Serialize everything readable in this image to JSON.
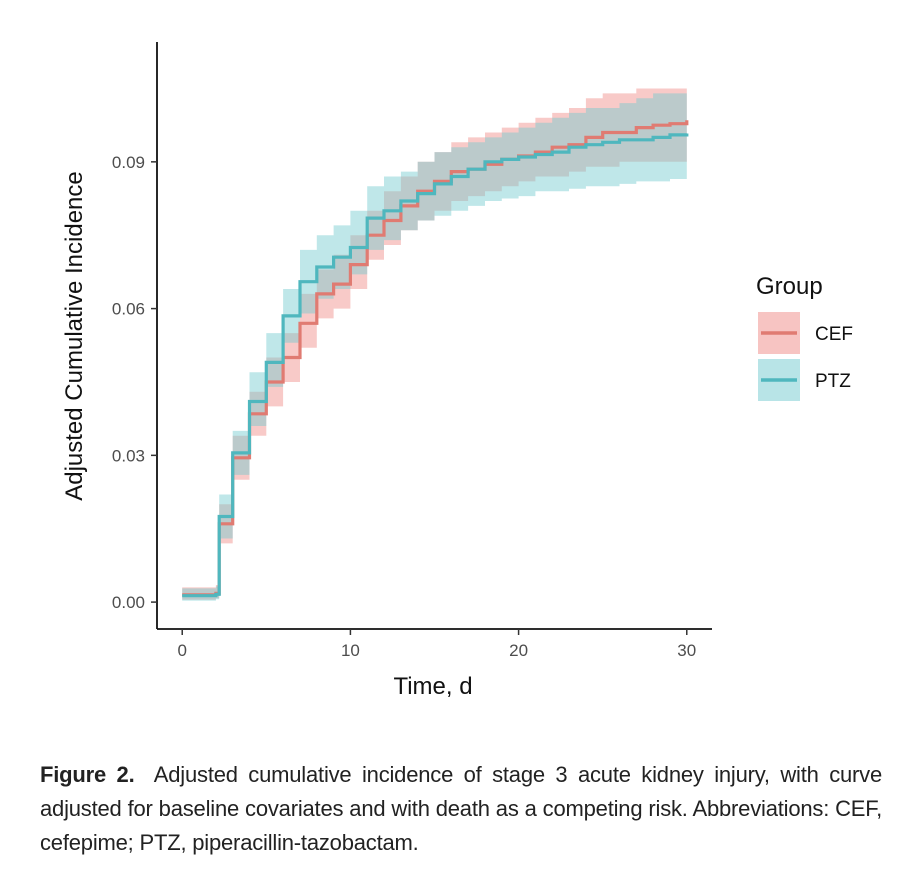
{
  "chart_data": {
    "type": "line",
    "title": "",
    "xlabel": "Time, d",
    "ylabel": "Adjusted Cumulative Incidence",
    "xlim": [
      -1.5,
      31.5
    ],
    "ylim": [
      -0.0055,
      0.1145
    ],
    "xticks": [
      0,
      10,
      20,
      30
    ],
    "xtick_labels": [
      "0",
      "10",
      "20",
      "30"
    ],
    "yticks": [
      0.0,
      0.03,
      0.06,
      0.09
    ],
    "ytick_labels": [
      "0.00",
      "0.03",
      "0.06",
      "0.09"
    ],
    "legend": {
      "title": "Group",
      "placement": "right"
    },
    "series": [
      {
        "name": "CEF",
        "color": "#e07b72",
        "band_color": "#f08a85",
        "x": [
          0,
          2,
          2.2,
          3,
          4,
          5,
          6,
          7,
          8,
          9,
          10,
          11,
          12,
          13,
          14,
          15,
          16,
          17,
          18,
          19,
          20,
          21,
          22,
          23,
          24,
          25,
          26,
          27,
          28,
          29,
          30
        ],
        "y": [
          0.0015,
          0.0018,
          0.016,
          0.0295,
          0.0385,
          0.045,
          0.05,
          0.057,
          0.063,
          0.065,
          0.069,
          0.075,
          0.078,
          0.081,
          0.084,
          0.086,
          0.088,
          0.0885,
          0.0895,
          0.0905,
          0.0912,
          0.092,
          0.093,
          0.0935,
          0.095,
          0.096,
          0.096,
          0.097,
          0.0975,
          0.0978,
          0.0985
        ],
        "lower": [
          0.0005,
          0.0008,
          0.012,
          0.025,
          0.034,
          0.04,
          0.045,
          0.052,
          0.058,
          0.06,
          0.064,
          0.07,
          0.073,
          0.076,
          0.078,
          0.08,
          0.082,
          0.083,
          0.084,
          0.085,
          0.086,
          0.087,
          0.087,
          0.088,
          0.089,
          0.089,
          0.09,
          0.09,
          0.09,
          0.09,
          0.091
        ],
        "upper": [
          0.003,
          0.0035,
          0.02,
          0.034,
          0.043,
          0.05,
          0.055,
          0.063,
          0.068,
          0.071,
          0.075,
          0.08,
          0.084,
          0.087,
          0.09,
          0.092,
          0.094,
          0.095,
          0.096,
          0.097,
          0.098,
          0.099,
          0.1,
          0.101,
          0.103,
          0.104,
          0.104,
          0.105,
          0.105,
          0.105,
          0.106
        ]
      },
      {
        "name": "PTZ",
        "color": "#4fb7be",
        "band_color": "#72c9cf",
        "x": [
          0,
          2,
          2.2,
          3,
          4,
          5,
          6,
          7,
          8,
          9,
          10,
          11,
          12,
          13,
          14,
          15,
          16,
          17,
          18,
          19,
          20,
          21,
          22,
          23,
          24,
          25,
          26,
          27,
          28,
          29,
          30
        ],
        "y": [
          0.0013,
          0.0016,
          0.0175,
          0.0305,
          0.041,
          0.049,
          0.0585,
          0.0655,
          0.0685,
          0.0705,
          0.0725,
          0.0785,
          0.08,
          0.082,
          0.0835,
          0.0855,
          0.087,
          0.0885,
          0.09,
          0.0905,
          0.091,
          0.0915,
          0.092,
          0.093,
          0.0935,
          0.094,
          0.0945,
          0.0945,
          0.095,
          0.0955,
          0.0958
        ],
        "lower": [
          0.0003,
          0.0006,
          0.013,
          0.026,
          0.036,
          0.044,
          0.053,
          0.059,
          0.062,
          0.064,
          0.067,
          0.072,
          0.074,
          0.076,
          0.078,
          0.079,
          0.08,
          0.081,
          0.082,
          0.0825,
          0.083,
          0.084,
          0.084,
          0.0845,
          0.085,
          0.085,
          0.0855,
          0.086,
          0.086,
          0.0865,
          0.087
        ],
        "upper": [
          0.0028,
          0.0032,
          0.022,
          0.035,
          0.047,
          0.055,
          0.064,
          0.072,
          0.075,
          0.077,
          0.08,
          0.085,
          0.087,
          0.088,
          0.09,
          0.092,
          0.093,
          0.094,
          0.095,
          0.096,
          0.097,
          0.098,
          0.099,
          0.1,
          0.101,
          0.101,
          0.102,
          0.103,
          0.104,
          0.104,
          0.104
        ]
      }
    ]
  },
  "caption": {
    "label": "Figure 2.",
    "text": "Adjusted cumulative incidence of stage 3 acute kidney injury, with curve adjusted for baseline covariates and with death as a competing risk. Abbreviations: CEF, cefepime; PTZ, piperacillin-tazobactam."
  }
}
